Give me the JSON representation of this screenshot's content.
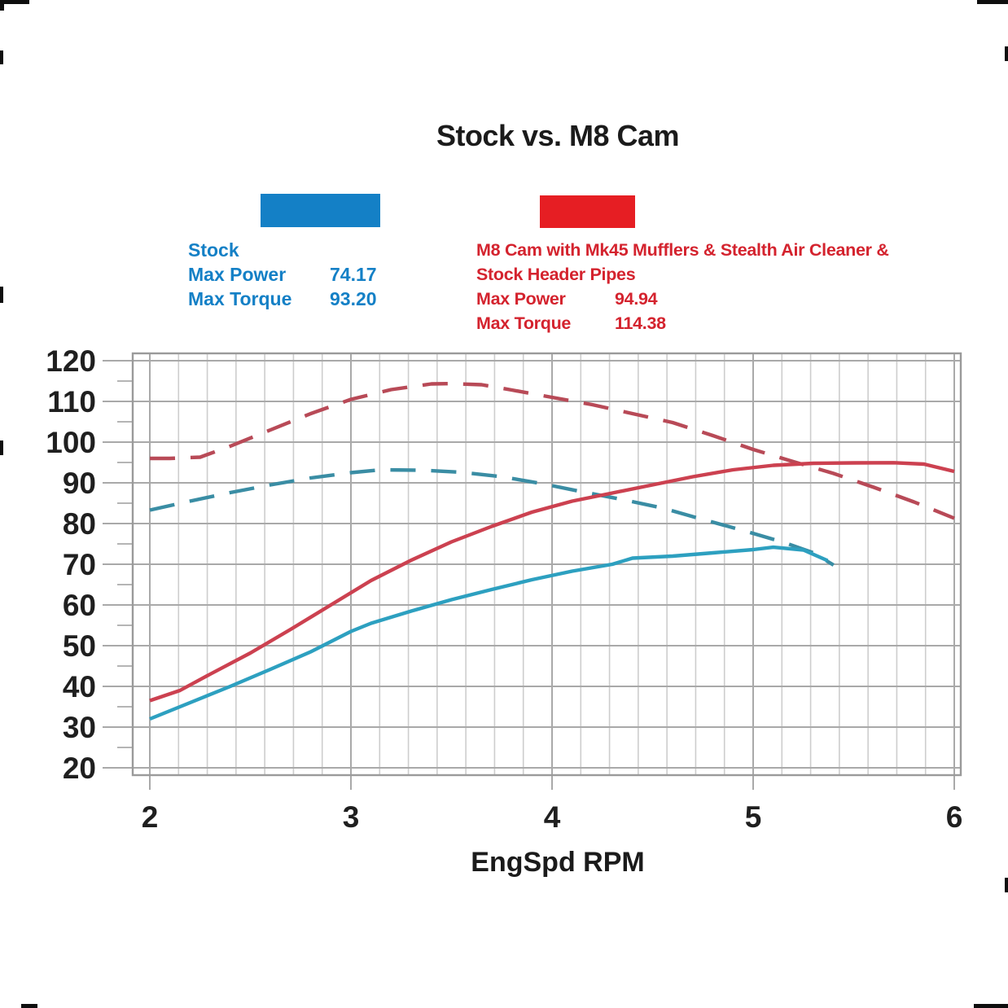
{
  "chart_data": {
    "type": "line",
    "title": "Stock vs. M8 Cam",
    "xlabel": "EngSpd RPM",
    "ylabel": "",
    "x_ticks": [
      2,
      3,
      4,
      5,
      6
    ],
    "y_ticks": [
      20,
      30,
      40,
      50,
      60,
      70,
      80,
      90,
      100,
      110,
      120
    ],
    "y_minor_ticks": [
      25,
      35,
      45,
      55,
      65,
      75,
      85,
      95,
      105,
      115
    ],
    "xlim": [
      1.915,
      6.032
    ],
    "ylim": [
      18.2,
      121.8
    ],
    "x_minor_divisions_per_unit": 7,
    "grid": {
      "minor_color": "#cdcdcd",
      "major_color": "#a9a9a9",
      "border_color": "#9a9a9a"
    },
    "legend_position": "top",
    "series": [
      {
        "id": "m8-torque",
        "label": "M8 Cam Torque",
        "style": "dashed",
        "color": "#b84a57",
        "points": [
          [
            2.0,
            96
          ],
          [
            2.1,
            96
          ],
          [
            2.25,
            96.3
          ],
          [
            2.4,
            99
          ],
          [
            2.6,
            103
          ],
          [
            2.8,
            107
          ],
          [
            3.0,
            110.5
          ],
          [
            3.2,
            112.9
          ],
          [
            3.4,
            114.3
          ],
          [
            3.5,
            114.38
          ],
          [
            3.65,
            114.1
          ],
          [
            3.8,
            112.8
          ],
          [
            4.0,
            111.0
          ],
          [
            4.2,
            109.2
          ],
          [
            4.4,
            107.0
          ],
          [
            4.6,
            104.8
          ],
          [
            4.8,
            101.6
          ],
          [
            5.0,
            98.2
          ],
          [
            5.2,
            95.2
          ],
          [
            5.4,
            92.3
          ],
          [
            5.6,
            88.9
          ],
          [
            5.8,
            85.3
          ],
          [
            6.0,
            81.3
          ]
        ]
      },
      {
        "id": "stock-torque",
        "label": "Stock Torque",
        "style": "dashed",
        "color": "#3a8da4",
        "points": [
          [
            2.0,
            83.3
          ],
          [
            2.2,
            85.5
          ],
          [
            2.4,
            87.6
          ],
          [
            2.6,
            89.5
          ],
          [
            2.8,
            91.2
          ],
          [
            3.0,
            92.5
          ],
          [
            3.15,
            93.2
          ],
          [
            3.35,
            93.1
          ],
          [
            3.55,
            92.6
          ],
          [
            3.75,
            91.5
          ],
          [
            3.95,
            89.8
          ],
          [
            4.15,
            87.8
          ],
          [
            4.35,
            85.9
          ],
          [
            4.55,
            83.8
          ],
          [
            4.75,
            81.0
          ],
          [
            4.95,
            78.3
          ],
          [
            5.15,
            75.4
          ],
          [
            5.3,
            72.8
          ],
          [
            5.4,
            69.8
          ]
        ]
      },
      {
        "id": "m8-power",
        "label": "M8 Cam Power",
        "style": "solid",
        "color": "#cc4150",
        "points": [
          [
            2.0,
            36.5
          ],
          [
            2.15,
            39.0
          ],
          [
            2.3,
            43.0
          ],
          [
            2.5,
            48.2
          ],
          [
            2.7,
            54.0
          ],
          [
            2.9,
            60.0
          ],
          [
            3.1,
            66.0
          ],
          [
            3.3,
            71.0
          ],
          [
            3.5,
            75.5
          ],
          [
            3.7,
            79.3
          ],
          [
            3.9,
            82.8
          ],
          [
            4.1,
            85.5
          ],
          [
            4.3,
            87.5
          ],
          [
            4.5,
            89.5
          ],
          [
            4.7,
            91.5
          ],
          [
            4.9,
            93.2
          ],
          [
            5.1,
            94.3
          ],
          [
            5.3,
            94.8
          ],
          [
            5.5,
            94.9
          ],
          [
            5.7,
            94.94
          ],
          [
            5.85,
            94.6
          ],
          [
            6.0,
            92.8
          ]
        ]
      },
      {
        "id": "stock-power",
        "label": "Stock Power",
        "style": "solid",
        "color": "#2da0c0",
        "points": [
          [
            2.0,
            32.0
          ],
          [
            2.2,
            36.0
          ],
          [
            2.4,
            40.0
          ],
          [
            2.6,
            44.2
          ],
          [
            2.8,
            48.5
          ],
          [
            3.0,
            53.5
          ],
          [
            3.1,
            55.5
          ],
          [
            3.3,
            58.5
          ],
          [
            3.5,
            61.3
          ],
          [
            3.7,
            63.8
          ],
          [
            3.9,
            66.2
          ],
          [
            4.1,
            68.3
          ],
          [
            4.3,
            70.0
          ],
          [
            4.4,
            71.5
          ],
          [
            4.6,
            72.0
          ],
          [
            4.8,
            72.8
          ],
          [
            5.0,
            73.6
          ],
          [
            5.1,
            74.17
          ],
          [
            5.25,
            73.5
          ],
          [
            5.37,
            70.9
          ]
        ]
      }
    ]
  },
  "legend": {
    "stock": {
      "swatch_color": "#1480c6",
      "text_color": "#1480c6",
      "name": "Stock",
      "max_power_label": "Max Power",
      "max_power_value": "74.17",
      "max_torque_label": "Max Torque",
      "max_torque_value": "93.20"
    },
    "m8": {
      "swatch_color": "#e61e23",
      "text_color": "#d4232e",
      "name_line1": "M8 Cam with Mk45 Mufflers & Stealth Air Cleaner &",
      "name_line2": "Stock Header Pipes",
      "max_power_label": "Max Power",
      "max_power_value": "94.94",
      "max_torque_label": "Max Torque",
      "max_torque_value": "114.38"
    }
  }
}
